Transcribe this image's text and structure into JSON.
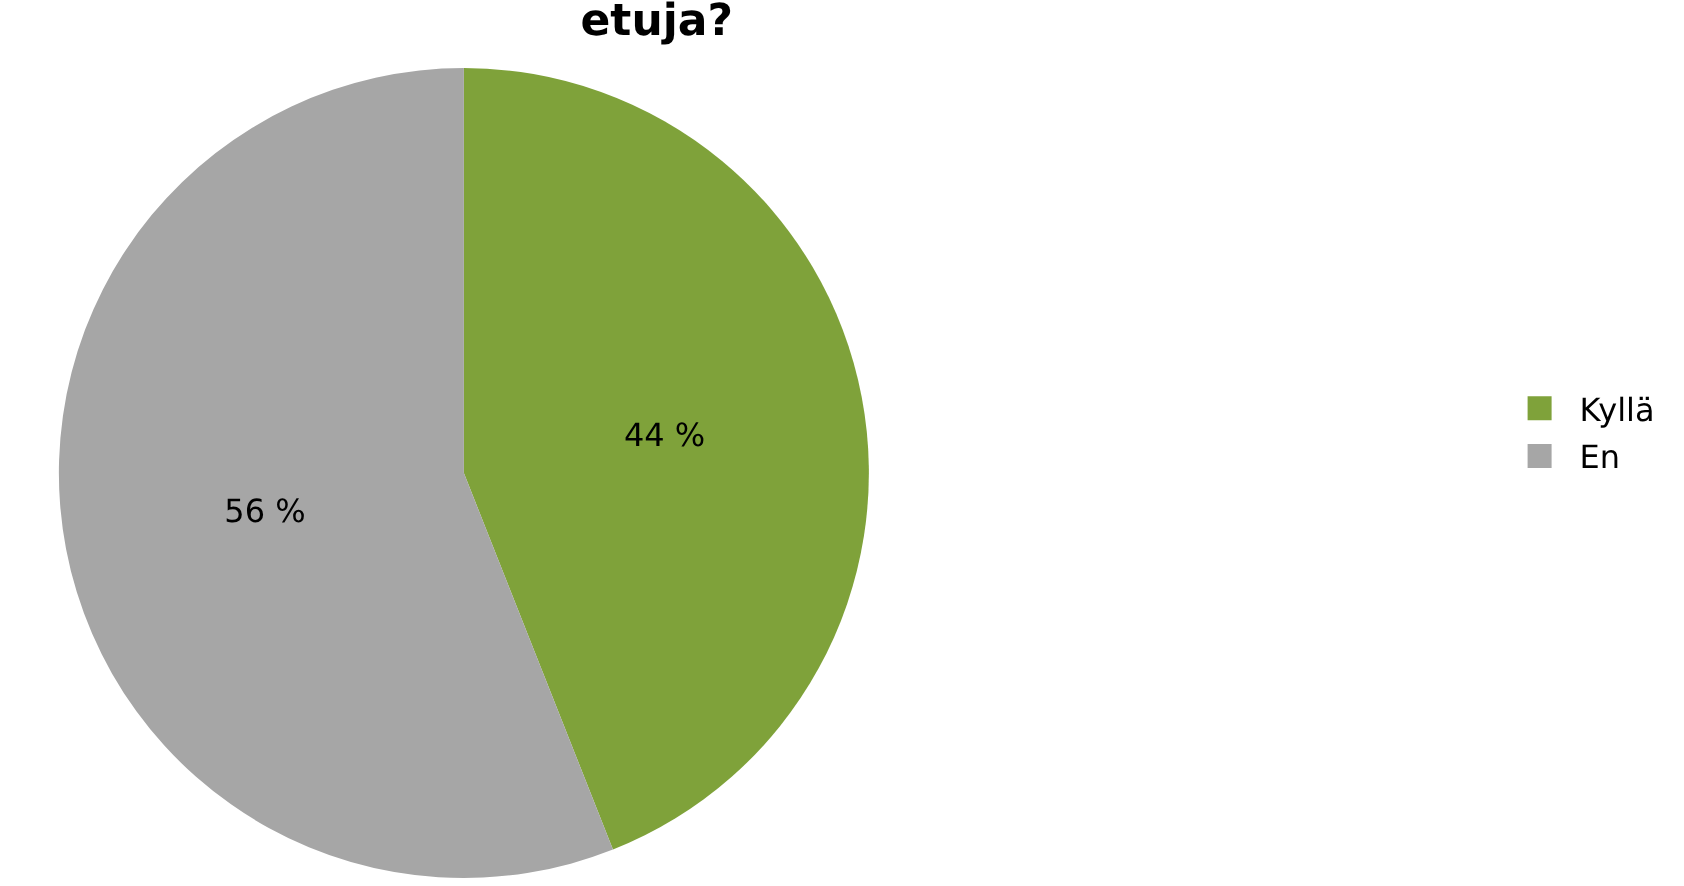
{
  "chart_data": {
    "type": "pie",
    "title": "etuja?",
    "categories": [
      "Kyllä",
      "En"
    ],
    "values": [
      44,
      56
    ],
    "colors": [
      "#7fa23a",
      "#a6a6a6"
    ],
    "value_labels": [
      "44 %",
      "56 %"
    ],
    "legend": "right"
  }
}
